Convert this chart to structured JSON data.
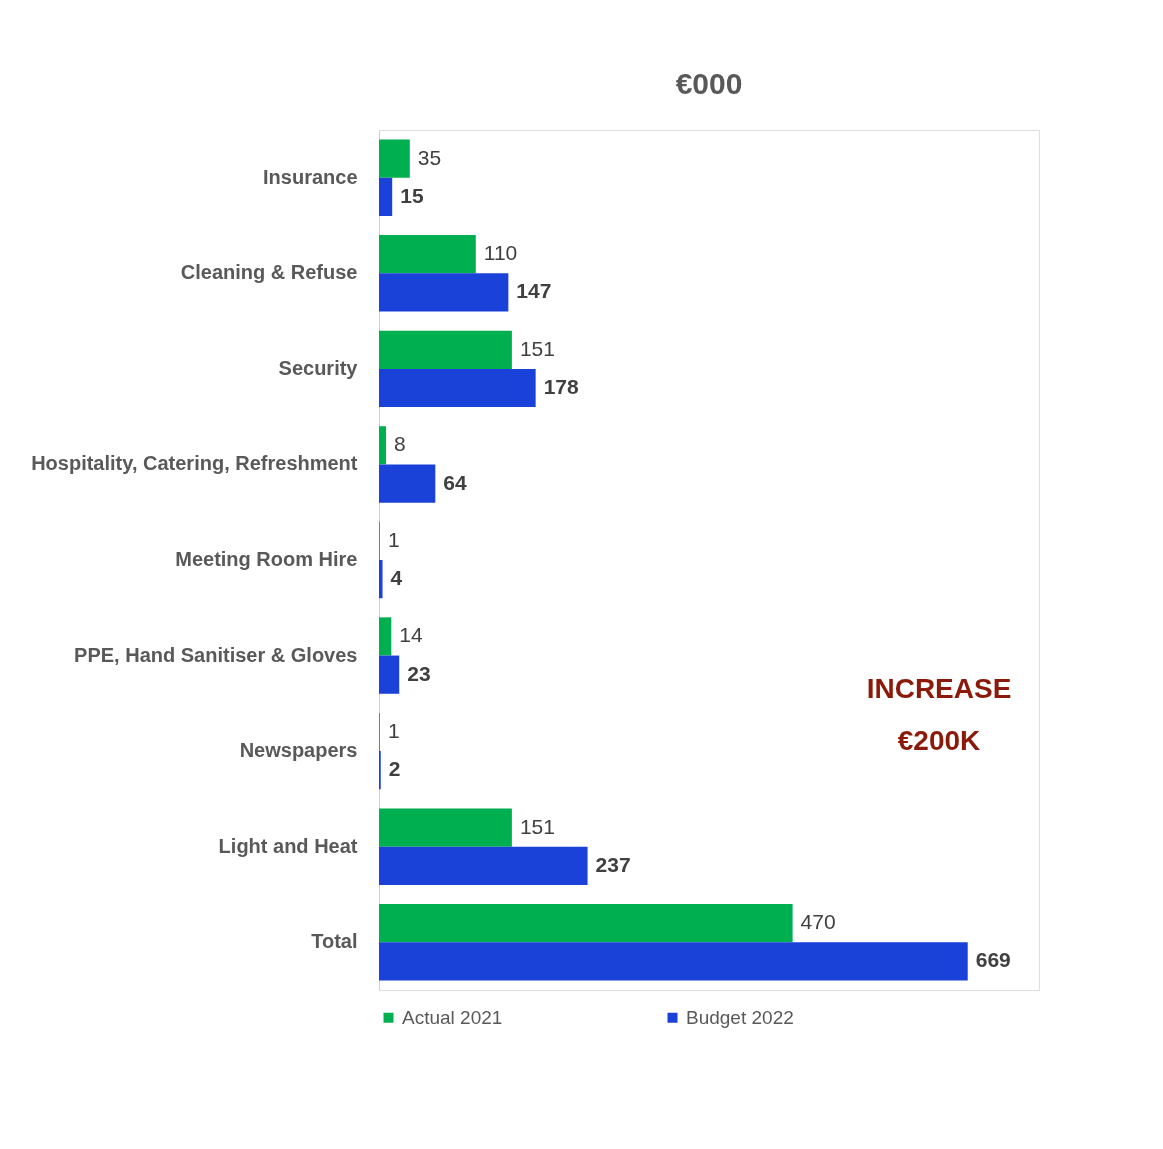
{
  "chart_data": {
    "type": "bar",
    "orientation": "horizontal",
    "title": "€000",
    "categories": [
      "Insurance",
      "Cleaning & Refuse",
      "Security",
      "Hospitality, Catering, Refreshment",
      "Meeting Room Hire",
      "PPE, Hand Sanitiser & Gloves",
      "Newspapers",
      "Light and Heat",
      "Total"
    ],
    "series": [
      {
        "name": "Actual 2021",
        "color": "#00b050",
        "values": [
          35,
          110,
          151,
          8,
          1,
          14,
          1,
          151,
          470
        ]
      },
      {
        "name": "Budget 2022",
        "color": "#1a41d8",
        "values": [
          15,
          147,
          178,
          64,
          4,
          23,
          2,
          237,
          669
        ]
      }
    ],
    "xlim": [
      0,
      750
    ],
    "tick_labels": "y",
    "grid": false,
    "legend": "bottom",
    "data_labels": true,
    "annotations": [
      "INCREASE €200K"
    ]
  }
}
